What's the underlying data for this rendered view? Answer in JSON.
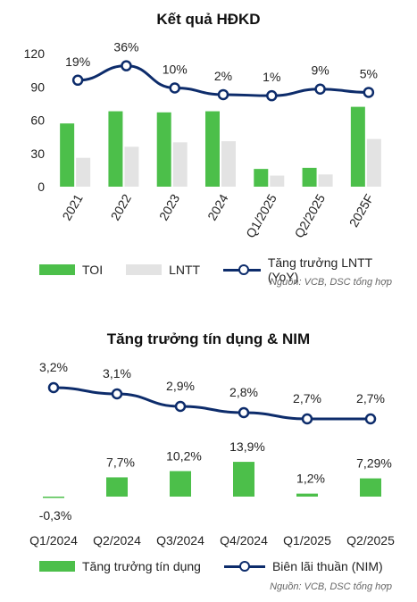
{
  "colors": {
    "green": "#4cbf4a",
    "gray": "#e3e3e3",
    "line": "#0d2c6b"
  },
  "chart_data": [
    {
      "type": "bar",
      "title": "Kết quả HĐKD",
      "categories": [
        "2021",
        "2022",
        "2023",
        "2024",
        "Q1/2025",
        "Q2/2025",
        "2025F"
      ],
      "ylim": [
        0,
        120
      ],
      "yticks": [
        "0",
        "30",
        "60",
        "90",
        "120"
      ],
      "series": [
        {
          "name": "TOI",
          "kind": "bar",
          "color": "#4cbf4a",
          "values": [
            57,
            68,
            67,
            68,
            16,
            17,
            72
          ]
        },
        {
          "name": "LNTT",
          "kind": "bar",
          "color": "#e3e3e3",
          "values": [
            26,
            36,
            40,
            41,
            10,
            11,
            43
          ]
        },
        {
          "name": "Tăng trưởng LNTT (YoY)",
          "kind": "line",
          "color": "#0d2c6b",
          "values": [
            96,
            109,
            89,
            83,
            82,
            88,
            85
          ],
          "labels": [
            "19%",
            "36%",
            "10%",
            "2%",
            "1%",
            "9%",
            "5%"
          ]
        }
      ],
      "legend": [
        "TOI",
        "LNTT",
        "Tăng trưởng LNTT (YoY)"
      ],
      "legend_position": "bottom",
      "source": "Nguồn: VCB, DSC tổng hợp"
    },
    {
      "type": "bar",
      "title": "Tăng trưởng tín dụng & NIM",
      "categories": [
        "Q1/2024",
        "Q2/2024",
        "Q3/2024",
        "Q4/2024",
        "Q1/2025",
        "Q2/2025"
      ],
      "series": [
        {
          "name": "Tăng trưởng tín dụng",
          "kind": "bar",
          "color": "#4cbf4a",
          "values": [
            -0.3,
            7.7,
            10.2,
            13.9,
            1.2,
            7.29
          ],
          "labels": [
            "-0,3%",
            "7,7%",
            "10,2%",
            "13,9%",
            "1,2%",
            "7,29%"
          ]
        },
        {
          "name": "Biên lãi thuần (NIM)",
          "kind": "line",
          "color": "#0d2c6b",
          "values": [
            3.2,
            3.1,
            2.9,
            2.8,
            2.7,
            2.7
          ],
          "labels": [
            "3,2%",
            "3,1%",
            "2,9%",
            "2,8%",
            "2,7%",
            "2,7%"
          ]
        }
      ],
      "legend": [
        "Tăng trưởng tín dụng",
        "Biên lãi thuần (NIM)"
      ],
      "legend_position": "bottom",
      "source": "Nguồn: VCB, DSC tổng hợp"
    }
  ]
}
